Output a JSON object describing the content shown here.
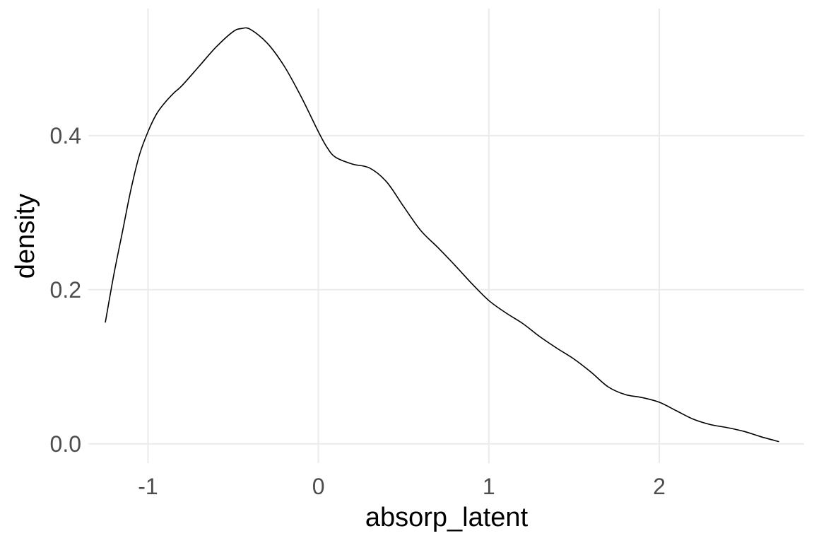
{
  "chart_data": {
    "type": "line",
    "title": "",
    "xlabel": "absorp_latent",
    "ylabel": "density",
    "xlim": [
      -1.35,
      2.85
    ],
    "ylim": [
      -0.025,
      0.565
    ],
    "x_ticks": [
      -1,
      0,
      1,
      2
    ],
    "y_ticks": [
      0.0,
      0.2,
      0.4
    ],
    "x_tick_labels": [
      "-1",
      "0",
      "1",
      "2"
    ],
    "y_tick_labels": [
      "0.0",
      "0.2",
      "0.4"
    ],
    "grid": true,
    "legend": "none",
    "series": [
      {
        "color": "#000000",
        "x": [
          -1.25,
          -1.2,
          -1.15,
          -1.1,
          -1.05,
          -1.0,
          -0.95,
          -0.9,
          -0.85,
          -0.8,
          -0.7,
          -0.6,
          -0.5,
          -0.45,
          -0.4,
          -0.3,
          -0.2,
          -0.1,
          0.0,
          0.05,
          0.1,
          0.2,
          0.3,
          0.4,
          0.5,
          0.6,
          0.7,
          0.8,
          0.9,
          1.0,
          1.1,
          1.2,
          1.3,
          1.4,
          1.5,
          1.6,
          1.7,
          1.8,
          1.9,
          2.0,
          2.1,
          2.2,
          2.3,
          2.4,
          2.5,
          2.6,
          2.7
        ],
        "y": [
          0.158,
          0.22,
          0.275,
          0.33,
          0.375,
          0.405,
          0.428,
          0.443,
          0.455,
          0.465,
          0.49,
          0.515,
          0.535,
          0.539,
          0.538,
          0.52,
          0.49,
          0.45,
          0.405,
          0.385,
          0.372,
          0.363,
          0.358,
          0.34,
          0.308,
          0.277,
          0.255,
          0.232,
          0.208,
          0.186,
          0.17,
          0.156,
          0.139,
          0.124,
          0.11,
          0.093,
          0.074,
          0.064,
          0.06,
          0.054,
          0.043,
          0.032,
          0.025,
          0.021,
          0.016,
          0.009,
          0.003
        ]
      }
    ]
  }
}
